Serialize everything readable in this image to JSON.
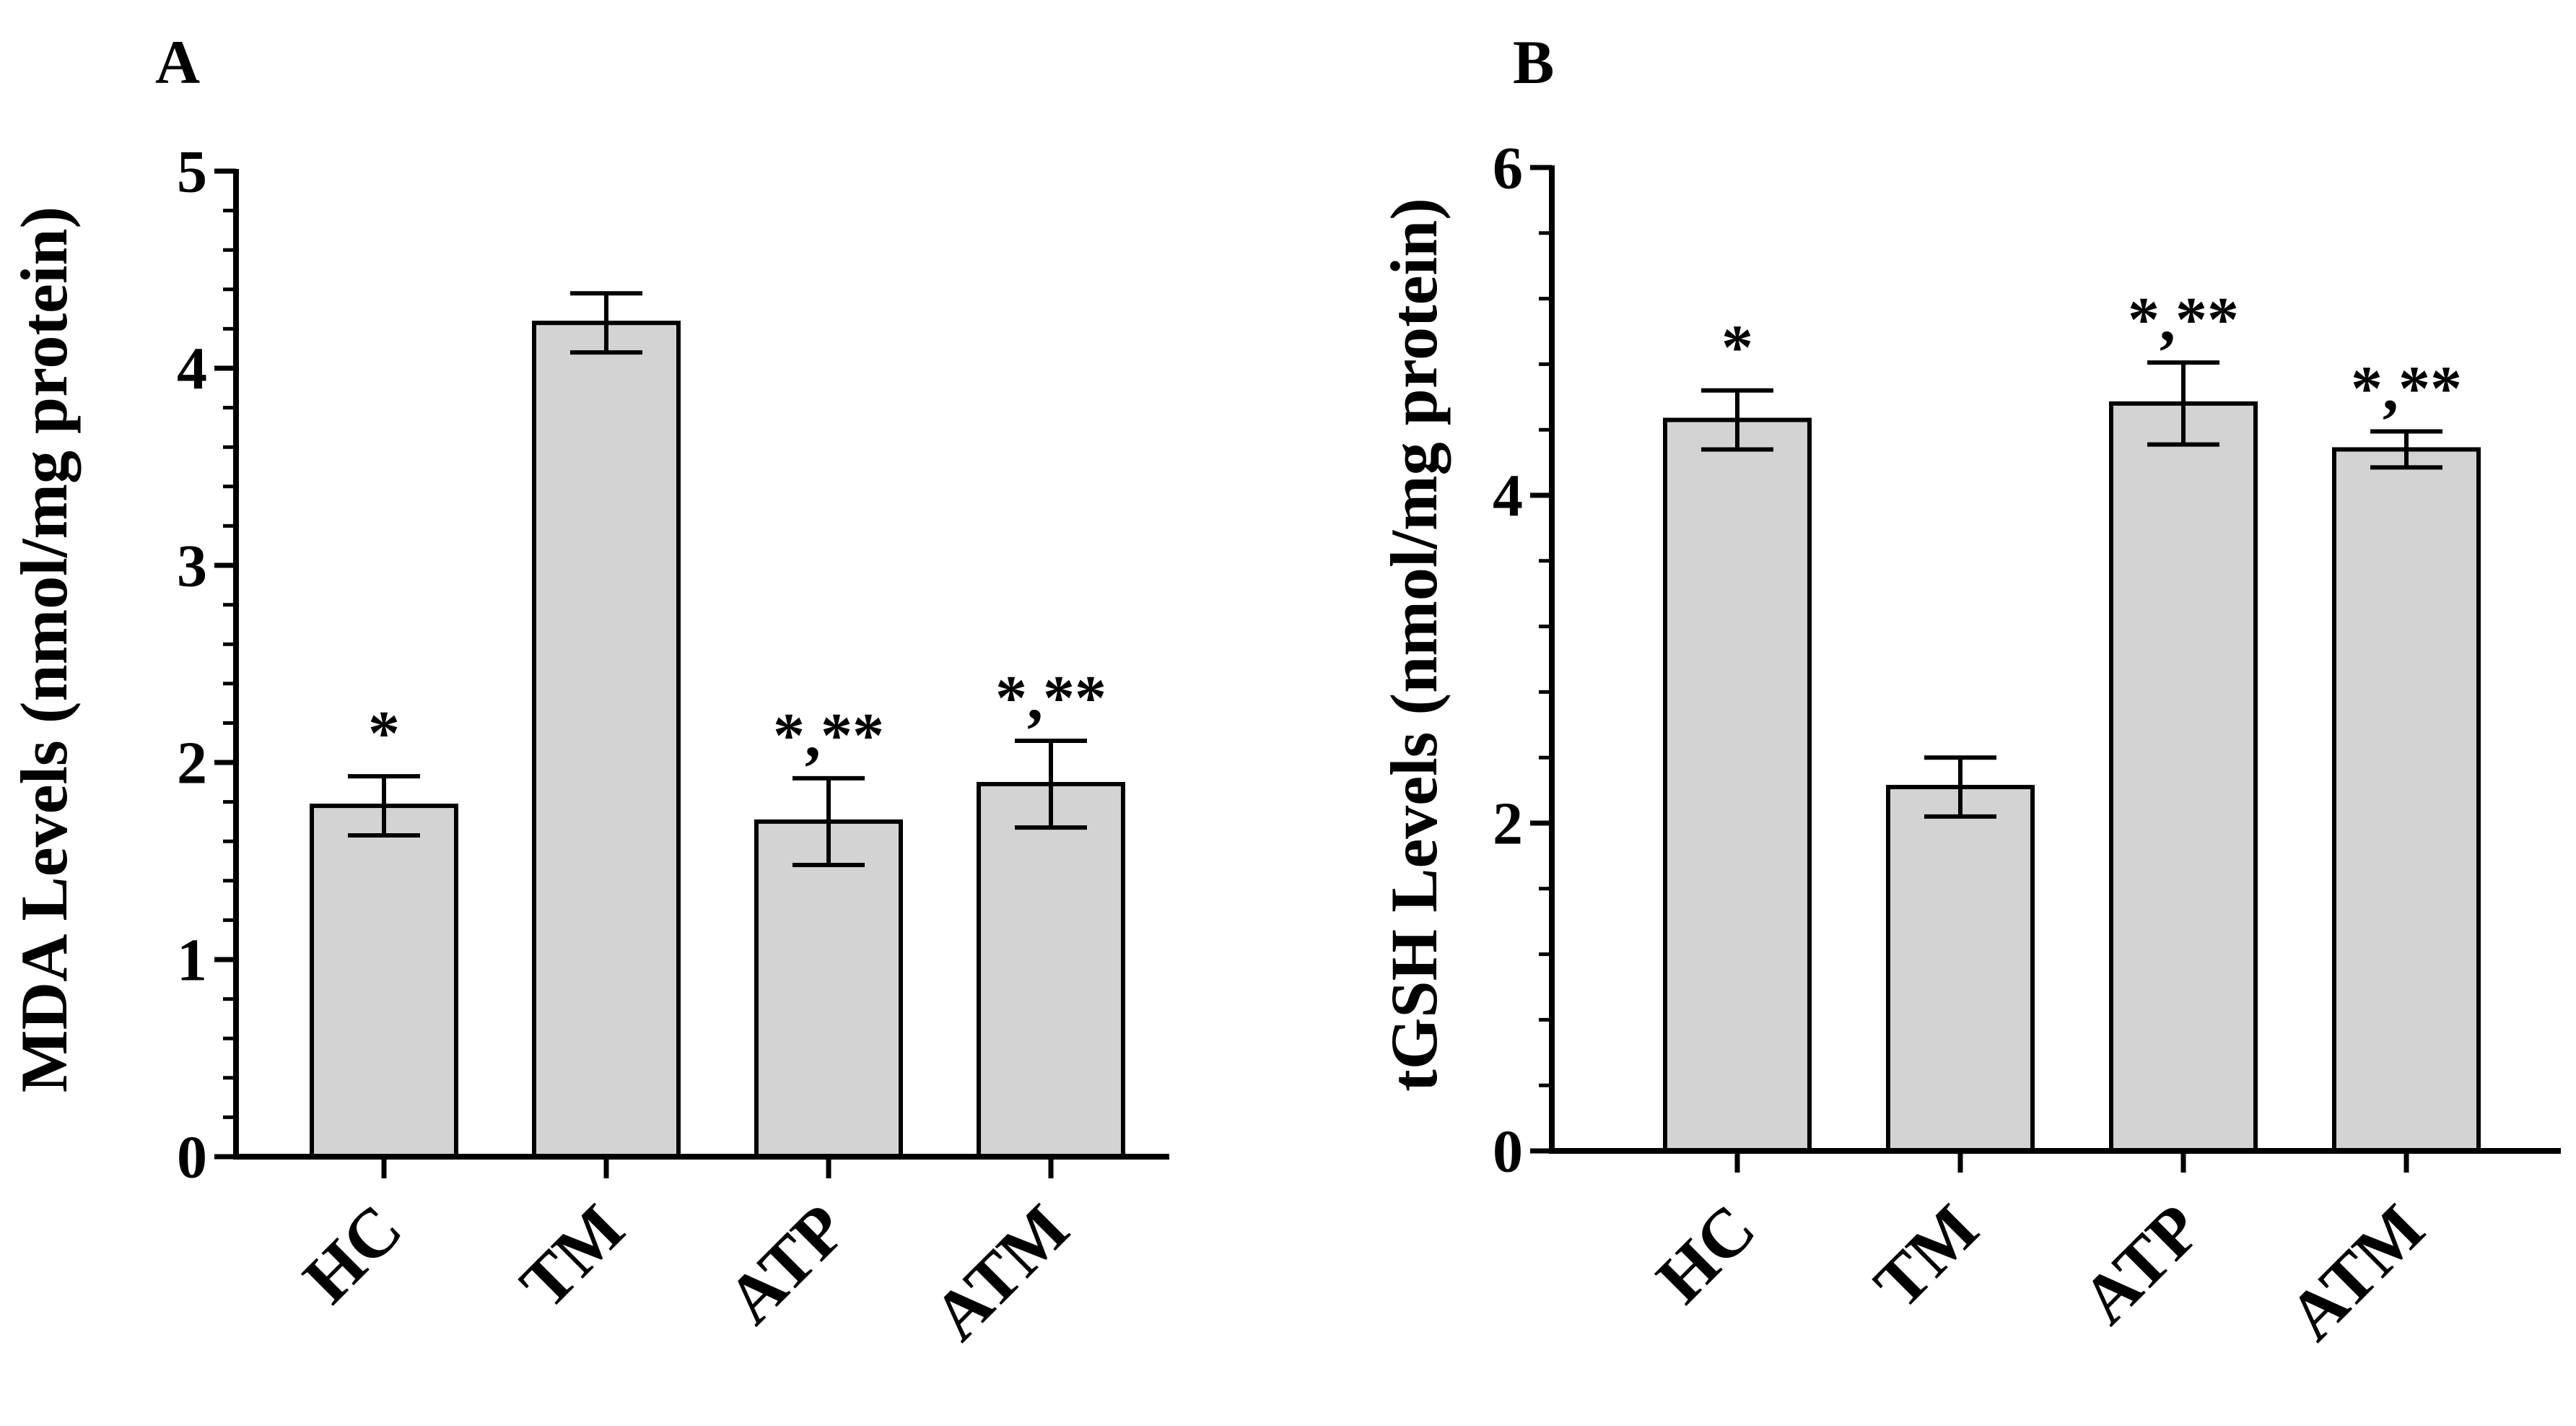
{
  "chart_data": [
    {
      "panel_label": "A",
      "type": "bar",
      "ylabel": "MDA Levels (nmol/mg protein)",
      "xlabel": "",
      "categories": [
        "HC",
        "TM",
        "ATP",
        "ATM"
      ],
      "values": [
        1.78,
        4.23,
        1.7,
        1.89
      ],
      "errors": [
        0.15,
        0.15,
        0.22,
        0.22
      ],
      "annotations": [
        "*",
        "",
        "*,**",
        "*,**"
      ],
      "ylim": [
        0,
        5
      ],
      "yticks": [
        0,
        1,
        2,
        3,
        4,
        5
      ],
      "minor_ticks_per_major": 5,
      "bar_color": "#d3d3d3",
      "grid": false
    },
    {
      "panel_label": "B",
      "type": "bar",
      "ylabel": "tGSH Levels (nmol/mg protein)",
      "xlabel": "",
      "categories": [
        "HC",
        "TM",
        "ATP",
        "ATM"
      ],
      "values": [
        4.46,
        2.22,
        4.56,
        4.28
      ],
      "errors": [
        0.18,
        0.18,
        0.25,
        0.11
      ],
      "annotations": [
        "*",
        "",
        "*,**",
        "*,**"
      ],
      "ylim": [
        0,
        6
      ],
      "yticks": [
        0,
        2,
        4,
        6
      ],
      "minor_ticks_per_major": 5,
      "bar_color": "#d3d3d3",
      "grid": false
    }
  ]
}
